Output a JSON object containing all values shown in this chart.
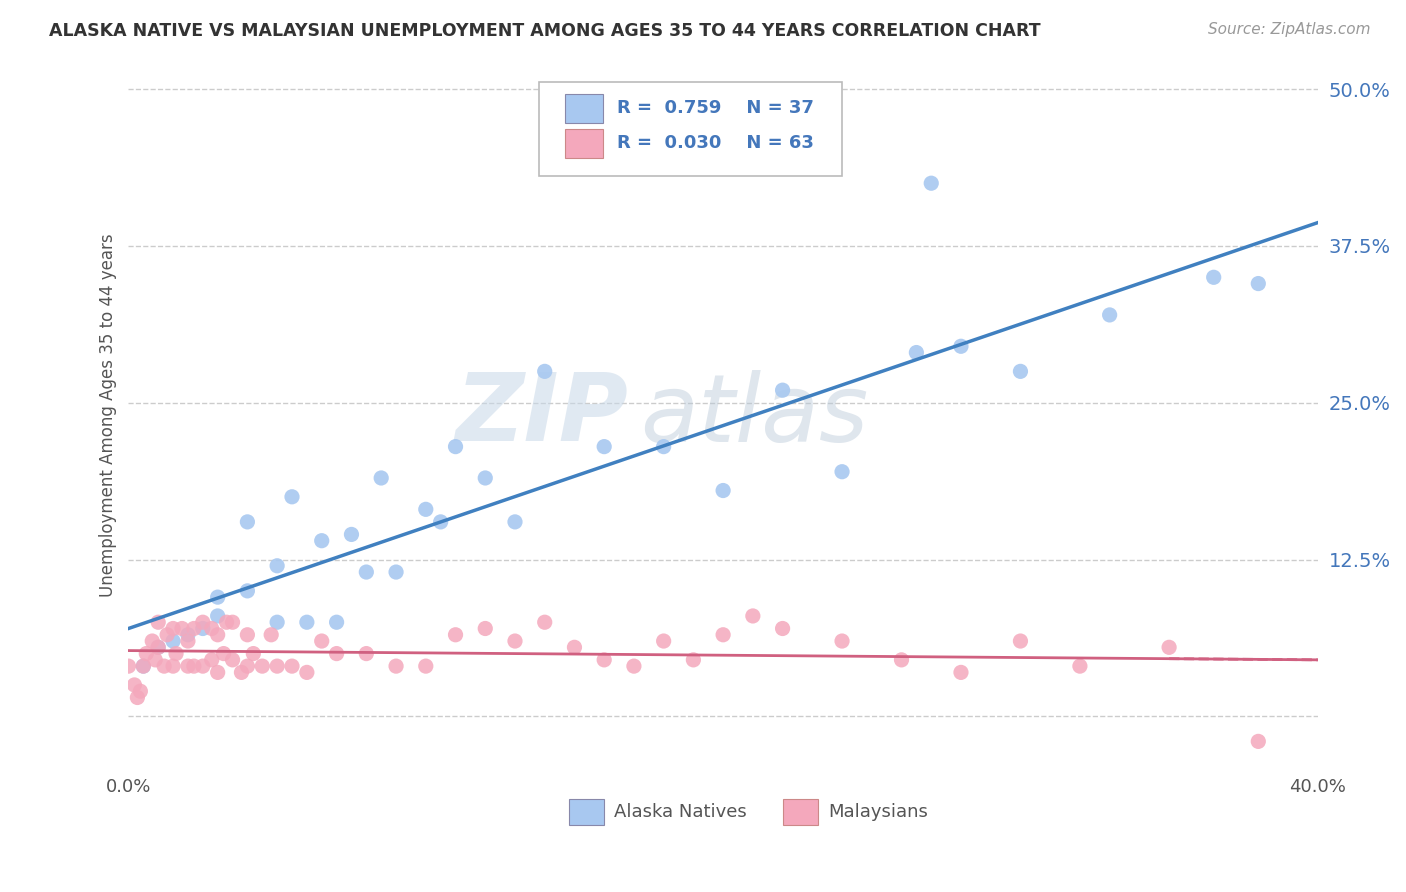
{
  "title": "ALASKA NATIVE VS MALAYSIAN UNEMPLOYMENT AMONG AGES 35 TO 44 YEARS CORRELATION CHART",
  "source": "Source: ZipAtlas.com",
  "ylabel": "Unemployment Among Ages 35 to 44 years",
  "xlim": [
    0.0,
    0.4
  ],
  "ylim": [
    -0.04,
    0.52
  ],
  "yticks": [
    0.0,
    0.125,
    0.25,
    0.375,
    0.5
  ],
  "ytick_labels": [
    "",
    "12.5%",
    "25.0%",
    "37.5%",
    "50.0%"
  ],
  "xtick_labels": [
    "0.0%",
    "40.0%"
  ],
  "alaska_color": "#a8c8f0",
  "malaysian_color": "#f4a8bc",
  "alaska_line_color": "#4080c0",
  "malaysian_line_color": "#d06080",
  "legend_text_color": "#4477bb",
  "R_alaska": 0.759,
  "N_alaska": 37,
  "R_malaysian": 0.03,
  "N_malaysian": 63,
  "watermark_zip": "ZIP",
  "watermark_atlas": "atlas",
  "alaska_x": [
    0.005,
    0.01,
    0.015,
    0.02,
    0.025,
    0.03,
    0.03,
    0.04,
    0.04,
    0.05,
    0.05,
    0.055,
    0.06,
    0.065,
    0.07,
    0.075,
    0.08,
    0.085,
    0.09,
    0.1,
    0.105,
    0.11,
    0.12,
    0.13,
    0.14,
    0.16,
    0.18,
    0.2,
    0.22,
    0.24,
    0.265,
    0.27,
    0.28,
    0.3,
    0.33,
    0.365,
    0.38
  ],
  "alaska_y": [
    0.04,
    0.055,
    0.06,
    0.065,
    0.07,
    0.08,
    0.095,
    0.1,
    0.155,
    0.075,
    0.12,
    0.175,
    0.075,
    0.14,
    0.075,
    0.145,
    0.115,
    0.19,
    0.115,
    0.165,
    0.155,
    0.215,
    0.19,
    0.155,
    0.275,
    0.215,
    0.215,
    0.18,
    0.26,
    0.195,
    0.29,
    0.425,
    0.295,
    0.275,
    0.32,
    0.35,
    0.345
  ],
  "malaysian_x": [
    0.0,
    0.002,
    0.003,
    0.004,
    0.005,
    0.006,
    0.008,
    0.009,
    0.01,
    0.01,
    0.012,
    0.013,
    0.015,
    0.015,
    0.016,
    0.018,
    0.02,
    0.02,
    0.022,
    0.022,
    0.025,
    0.025,
    0.028,
    0.028,
    0.03,
    0.03,
    0.032,
    0.033,
    0.035,
    0.035,
    0.038,
    0.04,
    0.04,
    0.042,
    0.045,
    0.048,
    0.05,
    0.055,
    0.06,
    0.065,
    0.07,
    0.08,
    0.09,
    0.1,
    0.11,
    0.12,
    0.13,
    0.14,
    0.15,
    0.16,
    0.17,
    0.18,
    0.19,
    0.2,
    0.21,
    0.22,
    0.24,
    0.26,
    0.28,
    0.3,
    0.32,
    0.35,
    0.38
  ],
  "malaysian_y": [
    0.04,
    0.025,
    0.015,
    0.02,
    0.04,
    0.05,
    0.06,
    0.045,
    0.055,
    0.075,
    0.04,
    0.065,
    0.04,
    0.07,
    0.05,
    0.07,
    0.04,
    0.06,
    0.04,
    0.07,
    0.04,
    0.075,
    0.045,
    0.07,
    0.035,
    0.065,
    0.05,
    0.075,
    0.045,
    0.075,
    0.035,
    0.04,
    0.065,
    0.05,
    0.04,
    0.065,
    0.04,
    0.04,
    0.035,
    0.06,
    0.05,
    0.05,
    0.04,
    0.04,
    0.065,
    0.07,
    0.06,
    0.075,
    0.055,
    0.045,
    0.04,
    0.06,
    0.045,
    0.065,
    0.08,
    0.07,
    0.06,
    0.045,
    0.035,
    0.06,
    0.04,
    0.055,
    -0.02
  ]
}
